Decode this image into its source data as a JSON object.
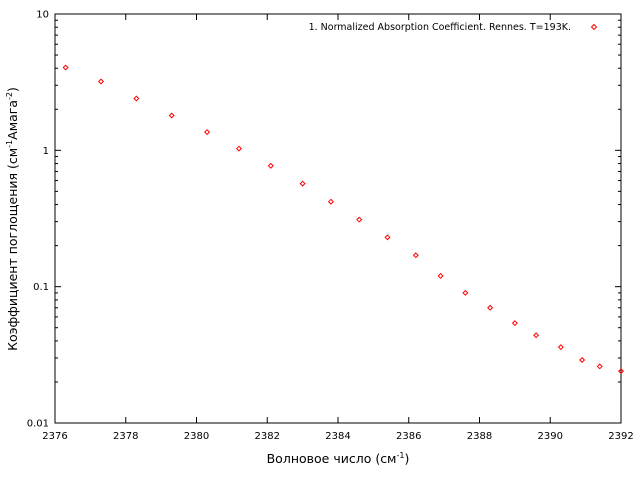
{
  "chart_data": {
    "type": "scatter",
    "title": "",
    "xlabel": {
      "text": "Волновое число (см",
      "sup": "-1",
      "tail": ")"
    },
    "ylabel": {
      "text": "Коэффициент поглощения (см",
      "sup1": "-1",
      "mid": "Амага",
      "sup2": "-2",
      "tail": ")"
    },
    "xlim": [
      2376,
      2392
    ],
    "ylim": [
      0.01,
      10
    ],
    "yscale": "log",
    "grid": false,
    "legend_position": "top-right",
    "x_ticks": [
      2376,
      2378,
      2380,
      2382,
      2384,
      2386,
      2388,
      2390,
      2392
    ],
    "x_tick_labels": [
      "2376",
      "2378",
      "2380",
      "2382",
      "2384",
      "2386",
      "2388",
      "2390",
      "2392"
    ],
    "y_ticks": [
      0.01,
      0.1,
      1,
      10
    ],
    "y_tick_labels": [
      "0.01",
      "0.1",
      "1",
      "10"
    ],
    "series": [
      {
        "name": "1. Normalized Absorption Coefficient. Rennes. T=193K.",
        "color": "#ff0000",
        "marker": "diamond",
        "x": [
          2376.3,
          2377.3,
          2378.3,
          2379.3,
          2380.3,
          2381.2,
          2382.1,
          2383.0,
          2383.8,
          2384.6,
          2385.4,
          2386.2,
          2386.9,
          2387.6,
          2388.3,
          2389.0,
          2389.6,
          2390.3,
          2390.9,
          2391.4,
          2392.0
        ],
        "y": [
          4.05,
          3.2,
          2.4,
          1.8,
          1.36,
          1.03,
          0.77,
          0.57,
          0.42,
          0.31,
          0.23,
          0.17,
          0.12,
          0.09,
          0.07,
          0.054,
          0.044,
          0.036,
          0.029,
          0.026,
          0.024
        ]
      }
    ]
  }
}
